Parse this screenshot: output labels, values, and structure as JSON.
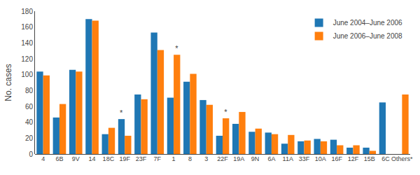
{
  "chart_data": {
    "type": "bar",
    "categories": [
      "4",
      "6B",
      "9V",
      "14",
      "18C",
      "19F",
      "23F",
      "7F",
      "1",
      "8",
      "3",
      "22F",
      "19A",
      "9N",
      "6A",
      "11A",
      "33F",
      "10A",
      "16F",
      "12F",
      "15B",
      "6C",
      "Others*"
    ],
    "series": [
      {
        "name": "June 2004–June 2006",
        "values": [
          104,
          46,
          106,
          170,
          25,
          44,
          75,
          153,
          71,
          91,
          68,
          23,
          38,
          28,
          27,
          13,
          16,
          19,
          18,
          8,
          8,
          65,
          null
        ]
      },
      {
        "name": "June 2006–June 2008",
        "values": [
          99,
          63,
          104,
          168,
          33,
          23,
          69,
          131,
          125,
          101,
          62,
          45,
          53,
          32,
          25,
          24,
          17,
          16,
          11,
          11,
          4,
          null,
          75
        ]
      }
    ],
    "annotations": [
      {
        "text": "*",
        "series": "June 2004–June 2006",
        "category": "19F"
      },
      {
        "text": "*",
        "series": "June 2006–June 2008",
        "category": "1"
      },
      {
        "text": "*",
        "series": "June 2006–June 2008",
        "category": "22F"
      }
    ],
    "ylabel": "No. cases",
    "ylim": [
      0,
      180
    ],
    "yticks": [
      0,
      20,
      40,
      60,
      80,
      100,
      120,
      140,
      160,
      180
    ],
    "legend": "upper right",
    "grid": false
  }
}
